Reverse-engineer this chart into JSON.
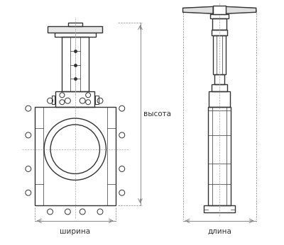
{
  "bg_color": "#ffffff",
  "line_color": "#333333",
  "dim_color": "#555555",
  "hatch_color": "#555555",
  "label_ширина": "ширина",
  "label_длина": "длина",
  "label_высота": "высота",
  "figsize": [
    4.0,
    3.46
  ],
  "dpi": 100
}
